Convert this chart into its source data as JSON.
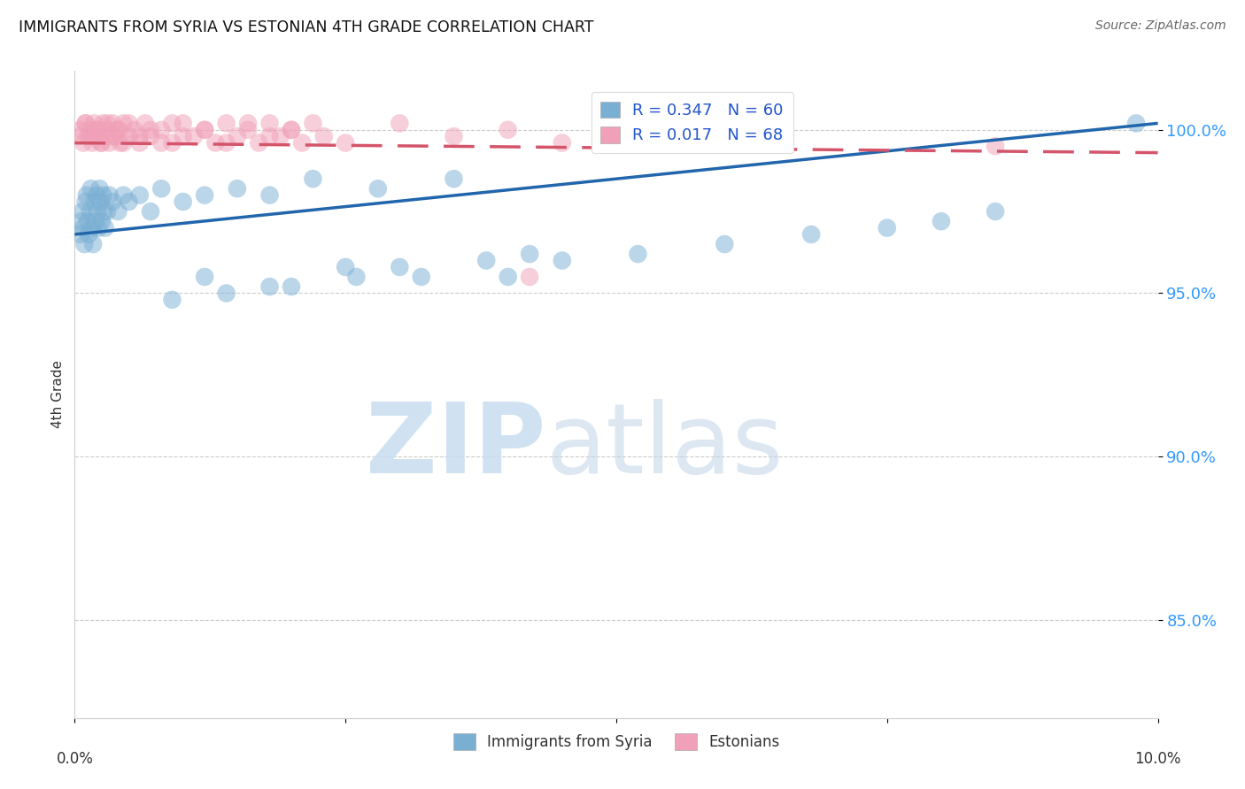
{
  "title": "IMMIGRANTS FROM SYRIA VS ESTONIAN 4TH GRADE CORRELATION CHART",
  "source": "Source: ZipAtlas.com",
  "ylabel": "4th Grade",
  "xlim": [
    0.0,
    10.0
  ],
  "ylim": [
    82.0,
    101.8
  ],
  "yticks": [
    85.0,
    90.0,
    95.0,
    100.0
  ],
  "ytick_labels": [
    "85.0%",
    "90.0%",
    "95.0%",
    "100.0%"
  ],
  "blue_R": 0.347,
  "blue_N": 60,
  "pink_R": 0.017,
  "pink_N": 68,
  "blue_color": "#7aafd4",
  "pink_color": "#f0a0b8",
  "blue_line_color": "#2166ac",
  "pink_line_color": "#d4546a",
  "legend_label_blue": "Immigrants from Syria",
  "legend_label_pink": "Estonians",
  "blue_x": [
    0.05,
    0.06,
    0.07,
    0.08,
    0.09,
    0.1,
    0.11,
    0.12,
    0.13,
    0.14,
    0.15,
    0.16,
    0.17,
    0.18,
    0.19,
    0.2,
    0.21,
    0.22,
    0.23,
    0.24,
    0.25,
    0.26,
    0.27,
    0.28,
    0.3,
    0.32,
    0.35,
    0.4,
    0.45,
    0.5,
    0.6,
    0.7,
    0.8,
    1.0,
    1.2,
    1.5,
    1.8,
    2.2,
    2.8,
    3.5,
    1.2,
    1.8,
    2.5,
    3.2,
    4.0,
    4.5,
    5.2,
    6.0,
    6.8,
    7.5,
    8.0,
    8.5,
    0.9,
    1.4,
    2.0,
    2.6,
    3.0,
    3.8,
    4.2,
    9.8
  ],
  "blue_y": [
    96.8,
    97.2,
    97.5,
    97.0,
    96.5,
    97.8,
    98.0,
    97.2,
    96.8,
    97.5,
    98.2,
    97.0,
    96.5,
    97.8,
    97.2,
    98.0,
    97.5,
    97.0,
    98.2,
    97.8,
    97.2,
    98.0,
    97.5,
    97.0,
    97.5,
    98.0,
    97.8,
    97.5,
    98.0,
    97.8,
    98.0,
    97.5,
    98.2,
    97.8,
    98.0,
    98.2,
    98.0,
    98.5,
    98.2,
    98.5,
    95.5,
    95.2,
    95.8,
    95.5,
    95.5,
    96.0,
    96.2,
    96.5,
    96.8,
    97.0,
    97.2,
    97.5,
    94.8,
    95.0,
    95.2,
    95.5,
    95.8,
    96.0,
    96.2,
    100.2
  ],
  "pink_x": [
    0.04,
    0.06,
    0.08,
    0.1,
    0.12,
    0.14,
    0.16,
    0.18,
    0.2,
    0.22,
    0.24,
    0.26,
    0.28,
    0.3,
    0.32,
    0.35,
    0.38,
    0.4,
    0.42,
    0.45,
    0.5,
    0.55,
    0.6,
    0.65,
    0.7,
    0.8,
    0.9,
    1.0,
    1.1,
    1.2,
    1.3,
    1.4,
    1.5,
    1.6,
    1.7,
    1.8,
    1.9,
    2.0,
    2.1,
    2.2,
    2.3,
    0.1,
    0.15,
    0.2,
    0.25,
    0.3,
    0.35,
    0.4,
    0.45,
    0.5,
    0.6,
    0.7,
    0.8,
    0.9,
    1.0,
    1.2,
    1.4,
    1.6,
    1.8,
    2.0,
    2.5,
    3.0,
    3.5,
    4.0,
    4.5,
    5.0,
    4.2,
    8.5
  ],
  "pink_y": [
    99.8,
    100.0,
    99.6,
    100.2,
    99.8,
    100.0,
    99.6,
    100.2,
    99.8,
    100.0,
    99.6,
    100.2,
    99.8,
    100.0,
    99.6,
    100.2,
    99.8,
    100.0,
    99.6,
    100.2,
    99.8,
    100.0,
    99.6,
    100.2,
    99.8,
    100.0,
    99.6,
    100.2,
    99.8,
    100.0,
    99.6,
    100.2,
    99.8,
    100.0,
    99.6,
    100.2,
    99.8,
    100.0,
    99.6,
    100.2,
    99.8,
    100.2,
    99.8,
    100.0,
    99.6,
    100.2,
    99.8,
    100.0,
    99.6,
    100.2,
    99.8,
    100.0,
    99.6,
    100.2,
    99.8,
    100.0,
    99.6,
    100.2,
    99.8,
    100.0,
    99.6,
    100.2,
    99.8,
    100.0,
    99.6,
    100.2,
    95.5,
    99.5
  ]
}
